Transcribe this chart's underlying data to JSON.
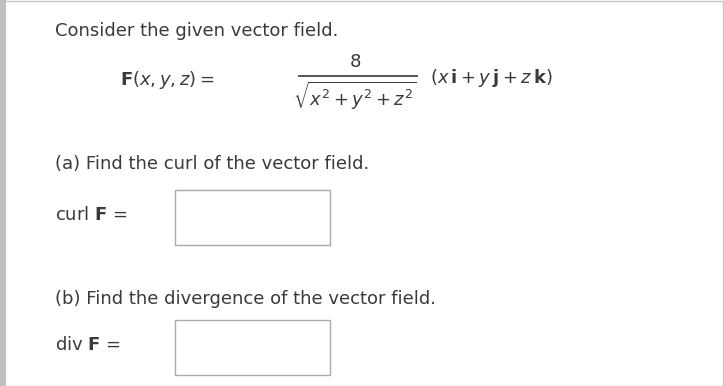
{
  "background_color": "#ffffff",
  "left_border_color": "#c0c0c0",
  "text_color": "#3a3a3a",
  "box_edge_color": "#aaaaaa",
  "box_fill_color": "#ffffff",
  "title": "Consider the given vector field.",
  "formula_F": "\\mathbf{F}(x, y, z) =",
  "numerator": "8",
  "denominator": "\\sqrt{x^2 + y^2 + z^2}",
  "vector_part": "(x\\,\\mathbf{i} + y\\,\\mathbf{j} + z\\,\\mathbf{k})",
  "part_a_text": "(a) Find the curl of the vector field.",
  "curl_label": "curl \\mathbf{F} =",
  "part_b_text": "(b) Find the divergence of the vector field.",
  "div_label": "div \\mathbf{F} =",
  "fontsize": 13,
  "fig_width": 7.24,
  "fig_height": 3.86,
  "dpi": 100
}
